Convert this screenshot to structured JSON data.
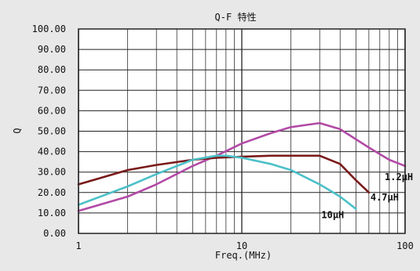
{
  "chart_data": {
    "type": "line",
    "title": "Q-F 特性",
    "xlabel": "Freq.(MHz)",
    "ylabel": "Q",
    "x_scale": "log",
    "xlim": [
      1,
      100
    ],
    "ylim": [
      0,
      100
    ],
    "y_ticks": [
      "0.00",
      "10.00",
      "20.00",
      "30.00",
      "40.00",
      "50.00",
      "60.00",
      "70.00",
      "80.00",
      "90.00",
      "100.00"
    ],
    "x_ticks": [
      {
        "value": 1,
        "label": "1"
      },
      {
        "value": 10,
        "label": "10"
      },
      {
        "value": 100,
        "label": "100"
      }
    ],
    "grid": true,
    "series": [
      {
        "name": "1.2μH",
        "color": "#b24aa6",
        "points": [
          [
            1,
            11
          ],
          [
            2,
            18
          ],
          [
            3,
            24
          ],
          [
            5,
            33
          ],
          [
            7,
            38
          ],
          [
            10,
            44
          ],
          [
            15,
            49
          ],
          [
            20,
            52
          ],
          [
            30,
            54
          ],
          [
            40,
            51
          ],
          [
            60,
            42
          ],
          [
            80,
            36
          ],
          [
            100,
            33
          ]
        ]
      },
      {
        "name": "4.7μH",
        "color": "#7a1a1a",
        "points": [
          [
            1,
            24
          ],
          [
            2,
            31
          ],
          [
            3,
            33.5
          ],
          [
            5,
            36
          ],
          [
            7,
            37
          ],
          [
            10,
            37.5
          ],
          [
            15,
            38
          ],
          [
            20,
            38
          ],
          [
            30,
            38
          ],
          [
            40,
            34
          ],
          [
            50,
            26
          ],
          [
            60,
            20
          ]
        ]
      },
      {
        "name": "10μH",
        "color": "#4cc0c8",
        "points": [
          [
            1,
            14
          ],
          [
            2,
            23
          ],
          [
            3,
            29
          ],
          [
            5,
            36
          ],
          [
            7,
            38
          ],
          [
            8,
            38
          ],
          [
            10,
            37
          ],
          [
            15,
            34
          ],
          [
            20,
            31
          ],
          [
            30,
            24
          ],
          [
            40,
            18
          ],
          [
            50,
            12
          ]
        ]
      }
    ]
  }
}
